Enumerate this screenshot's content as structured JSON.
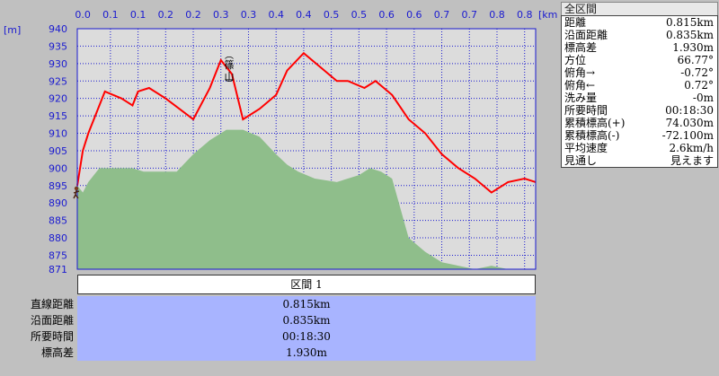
{
  "chart": {
    "y_unit": "[m]",
    "x_unit": "[km]",
    "x_ticks": [
      "0.0",
      "0.1",
      "0.1",
      "0.2",
      "0.2",
      "0.3",
      "0.3",
      "0.4",
      "0.4",
      "0.5",
      "0.5",
      "0.6",
      "0.6",
      "0.7",
      "0.7",
      "0.8",
      "0.8"
    ],
    "y_ticks": [
      "940",
      "935",
      "930",
      "925",
      "920",
      "915",
      "910",
      "905",
      "900",
      "895",
      "890",
      "885",
      "880",
      "875",
      "871"
    ],
    "peak_label": "篠山",
    "colors": {
      "plot_bg": "#dcdcdc",
      "grid": "#1a1ad0",
      "route": "#ff0000",
      "terrain": "#8fbe8b"
    }
  },
  "chart_data": {
    "type": "line",
    "xlabel": "[km]",
    "ylabel": "[m]",
    "xlim": [
      -0.01,
      0.82
    ],
    "ylim": [
      871,
      940
    ],
    "series": [
      {
        "x": [
          -0.01,
          0.0,
          0.01,
          0.04,
          0.07,
          0.08,
          0.09,
          0.1,
          0.12,
          0.15,
          0.2,
          0.23,
          0.25,
          0.27,
          0.29,
          0.32,
          0.35,
          0.37,
          0.4,
          0.43,
          0.46,
          0.48,
          0.51,
          0.53,
          0.56,
          0.59,
          0.62,
          0.65,
          0.68,
          0.71,
          0.74,
          0.77,
          0.8,
          0.82
        ],
        "values": [
          895,
          905,
          910,
          922,
          920,
          919,
          918,
          922,
          923,
          920,
          914,
          923,
          931,
          927,
          914,
          917,
          921,
          928,
          933,
          929,
          925,
          925,
          923,
          925,
          921,
          914,
          910,
          904,
          900,
          897,
          893,
          896,
          897,
          896
        ]
      },
      {
        "x": [
          -0.01,
          0.0,
          0.01,
          0.03,
          0.05,
          0.07,
          0.09,
          0.11,
          0.14,
          0.17,
          0.2,
          0.23,
          0.26,
          0.29,
          0.32,
          0.35,
          0.37,
          0.39,
          0.42,
          0.46,
          0.5,
          0.52,
          0.54,
          0.56,
          0.59,
          0.62,
          0.65,
          0.68,
          0.71,
          0.74,
          0.77,
          0.8,
          0.82
        ],
        "values": [
          895,
          893,
          896,
          900,
          900,
          900,
          900,
          899,
          899,
          899,
          904,
          908,
          911,
          911,
          909,
          904,
          901,
          899,
          897,
          896,
          898,
          900,
          899,
          897,
          880,
          876,
          873,
          872,
          871,
          872,
          871,
          871,
          871
        ]
      }
    ]
  },
  "summary": {
    "title": "全区間",
    "rows": [
      {
        "label": "距離",
        "value": "0.815km"
      },
      {
        "label": "沿面距離",
        "value": "0.835km"
      },
      {
        "label": "標高差",
        "value": "1.930m"
      },
      {
        "label": "方位",
        "value": "66.77°"
      },
      {
        "label": "俯角→",
        "value": "-0.72°"
      },
      {
        "label": "俯角←",
        "value": "0.72°"
      },
      {
        "label": "洗み量",
        "value": "-0m"
      },
      {
        "label": "所要時間",
        "value": "00:18:30"
      },
      {
        "label": "累積標高(+)",
        "value": "74.030m"
      },
      {
        "label": "累積標高(-)",
        "value": "-72.100m"
      },
      {
        "label": "平均速度",
        "value": "2.6km/h"
      },
      {
        "label": "見通し",
        "value": "見えます"
      }
    ]
  },
  "section": {
    "header": "区間 1",
    "labels": [
      "直線距離",
      "沿面距離",
      "所要時間",
      "標高差"
    ],
    "values": [
      "0.815km",
      "0.835km",
      "00:18:30",
      "1.930m"
    ]
  }
}
